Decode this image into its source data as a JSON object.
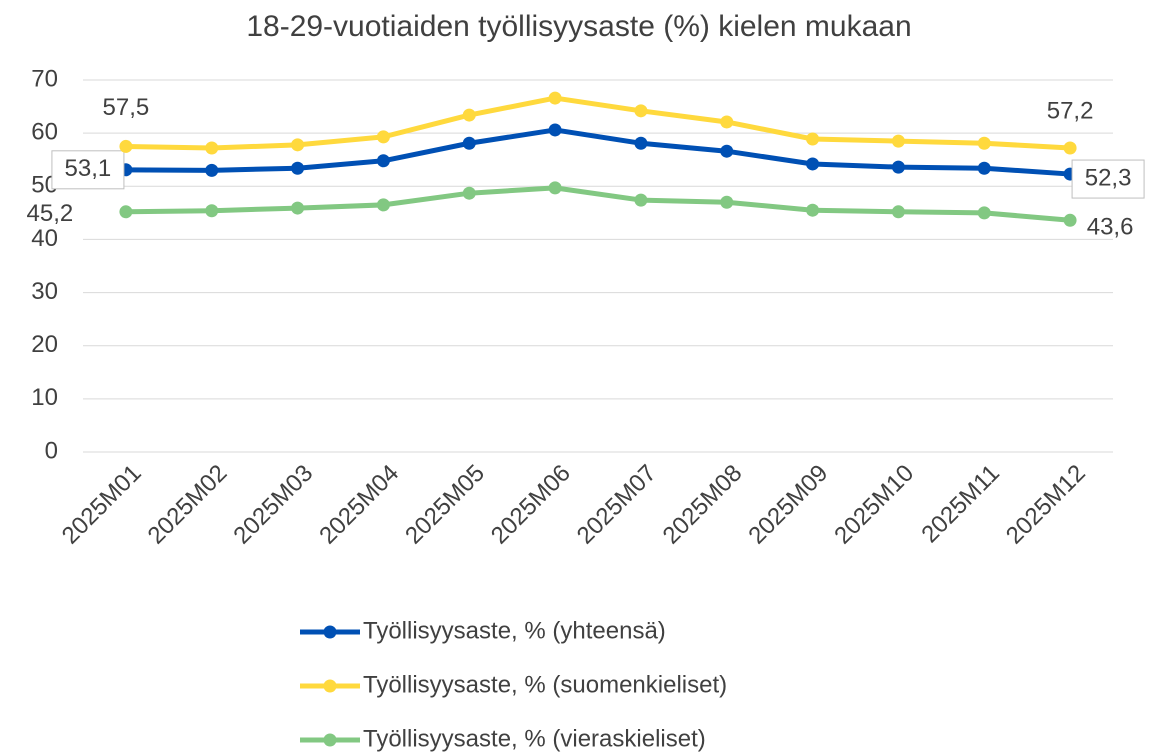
{
  "chart_data": {
    "type": "line",
    "title": "18-29-vuotiaiden työllisyysaste (%) kielen mukaan",
    "categories": [
      "2025M01",
      "2025M02",
      "2025M03",
      "2025M04",
      "2025M05",
      "2025M06",
      "2025M07",
      "2025M08",
      "2025M09",
      "2025M10",
      "2025M11",
      "2025M12"
    ],
    "series": [
      {
        "name": "Työllisyysaste, % (yhteensä)",
        "color": "#0050b4",
        "values": [
          53.1,
          53.0,
          53.4,
          54.8,
          58.1,
          60.6,
          58.1,
          56.6,
          54.2,
          53.6,
          53.4,
          52.3
        ],
        "value_labels": [
          "53,1",
          null,
          null,
          null,
          null,
          null,
          null,
          null,
          null,
          null,
          null,
          "52,3"
        ]
      },
      {
        "name": "Työllisyysaste, % (suomenkieliset)",
        "color": "#ffd93d",
        "values": [
          57.5,
          57.2,
          57.8,
          59.3,
          63.4,
          66.6,
          64.2,
          62.1,
          58.9,
          58.5,
          58.1,
          57.2
        ],
        "value_labels": [
          "57,5",
          null,
          null,
          null,
          null,
          null,
          null,
          null,
          null,
          null,
          null,
          "57,2"
        ]
      },
      {
        "name": "Työllisyysaste, % (vieraskieliset)",
        "color": "#82c882",
        "values": [
          45.2,
          45.4,
          45.9,
          46.5,
          48.7,
          49.7,
          47.4,
          47.0,
          45.5,
          45.2,
          45.0,
          43.6
        ],
        "value_labels": [
          "45,2",
          null,
          null,
          null,
          null,
          null,
          null,
          null,
          null,
          null,
          null,
          "43,6"
        ]
      }
    ],
    "ylim": [
      0,
      70
    ],
    "yticks": [
      0,
      10,
      20,
      30,
      40,
      50,
      60,
      70
    ],
    "grid": true,
    "legend": "bottom"
  }
}
